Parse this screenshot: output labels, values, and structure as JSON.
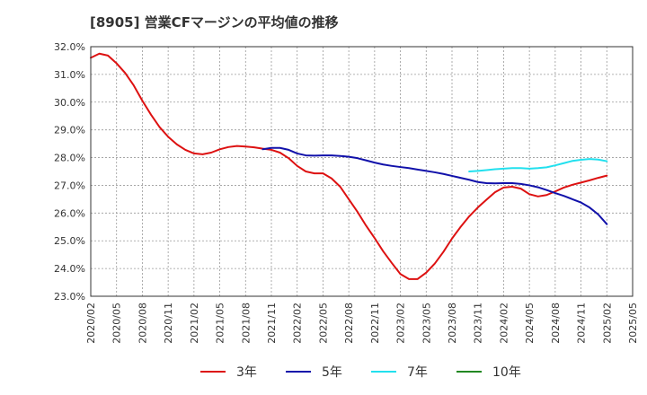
{
  "chart_data": {
    "type": "line",
    "title": "[8905]  営業CFマージンの平均値の推移",
    "xlabel": "",
    "ylabel": "",
    "ylim": [
      23.0,
      32.0
    ],
    "y_ticks": [
      "23.0%",
      "24.0%",
      "25.0%",
      "26.0%",
      "27.0%",
      "28.0%",
      "29.0%",
      "30.0%",
      "31.0%",
      "32.0%"
    ],
    "x_ticks": [
      "2020/02",
      "2020/05",
      "2020/08",
      "2020/11",
      "2021/02",
      "2021/05",
      "2021/08",
      "2021/11",
      "2022/02",
      "2022/05",
      "2022/08",
      "2022/11",
      "2023/02",
      "2023/05",
      "2023/08",
      "2023/11",
      "2024/02",
      "2024/05",
      "2024/08",
      "2024/11",
      "2025/02",
      "2025/05"
    ],
    "grid": true,
    "legend_position": "bottom",
    "series": [
      {
        "name": "3年",
        "color": "#dd1111",
        "points": [
          [
            "2020/02",
            31.6
          ],
          [
            "2020/03",
            31.75
          ],
          [
            "2020/04",
            31.68
          ],
          [
            "2020/05",
            31.4
          ],
          [
            "2020/06",
            31.05
          ],
          [
            "2020/07",
            30.6
          ],
          [
            "2020/08",
            30.05
          ],
          [
            "2020/09",
            29.55
          ],
          [
            "2020/10",
            29.1
          ],
          [
            "2020/11",
            28.75
          ],
          [
            "2020/12",
            28.48
          ],
          [
            "2021/01",
            28.28
          ],
          [
            "2021/02",
            28.15
          ],
          [
            "2021/03",
            28.12
          ],
          [
            "2021/04",
            28.18
          ],
          [
            "2021/05",
            28.3
          ],
          [
            "2021/06",
            28.38
          ],
          [
            "2021/07",
            28.42
          ],
          [
            "2021/08",
            28.4
          ],
          [
            "2021/09",
            28.37
          ],
          [
            "2021/10",
            28.32
          ],
          [
            "2021/11",
            28.28
          ],
          [
            "2021/12",
            28.18
          ],
          [
            "2022/01",
            27.98
          ],
          [
            "2022/02",
            27.7
          ],
          [
            "2022/03",
            27.5
          ],
          [
            "2022/04",
            27.43
          ],
          [
            "2022/05",
            27.43
          ],
          [
            "2022/06",
            27.25
          ],
          [
            "2022/07",
            26.95
          ],
          [
            "2022/08",
            26.5
          ],
          [
            "2022/09",
            26.05
          ],
          [
            "2022/10",
            25.55
          ],
          [
            "2022/11",
            25.1
          ],
          [
            "2022/12",
            24.62
          ],
          [
            "2023/01",
            24.2
          ],
          [
            "2023/02",
            23.8
          ],
          [
            "2023/03",
            23.62
          ],
          [
            "2023/04",
            23.62
          ],
          [
            "2023/05",
            23.85
          ],
          [
            "2023/06",
            24.18
          ],
          [
            "2023/07",
            24.6
          ],
          [
            "2023/08",
            25.08
          ],
          [
            "2023/09",
            25.5
          ],
          [
            "2023/10",
            25.88
          ],
          [
            "2023/11",
            26.2
          ],
          [
            "2023/12",
            26.48
          ],
          [
            "2024/01",
            26.75
          ],
          [
            "2024/02",
            26.92
          ],
          [
            "2024/03",
            26.95
          ],
          [
            "2024/04",
            26.88
          ],
          [
            "2024/05",
            26.68
          ],
          [
            "2024/06",
            26.6
          ],
          [
            "2024/07",
            26.65
          ],
          [
            "2024/08",
            26.78
          ],
          [
            "2024/09",
            26.92
          ],
          [
            "2024/10",
            27.02
          ],
          [
            "2024/11",
            27.1
          ],
          [
            "2024/12",
            27.18
          ],
          [
            "2025/01",
            27.27
          ],
          [
            "2025/02",
            27.35
          ]
        ]
      },
      {
        "name": "5年",
        "color": "#1111aa",
        "points": [
          [
            "2021/10",
            28.3
          ],
          [
            "2021/11",
            28.35
          ],
          [
            "2021/12",
            28.35
          ],
          [
            "2022/01",
            28.28
          ],
          [
            "2022/02",
            28.15
          ],
          [
            "2022/03",
            28.08
          ],
          [
            "2022/04",
            28.07
          ],
          [
            "2022/05",
            28.08
          ],
          [
            "2022/06",
            28.08
          ],
          [
            "2022/07",
            28.06
          ],
          [
            "2022/08",
            28.03
          ],
          [
            "2022/09",
            27.98
          ],
          [
            "2022/10",
            27.9
          ],
          [
            "2022/11",
            27.82
          ],
          [
            "2022/12",
            27.75
          ],
          [
            "2023/01",
            27.7
          ],
          [
            "2023/02",
            27.66
          ],
          [
            "2023/03",
            27.62
          ],
          [
            "2023/04",
            27.57
          ],
          [
            "2023/05",
            27.52
          ],
          [
            "2023/06",
            27.47
          ],
          [
            "2023/07",
            27.41
          ],
          [
            "2023/08",
            27.34
          ],
          [
            "2023/09",
            27.27
          ],
          [
            "2023/10",
            27.2
          ],
          [
            "2023/11",
            27.12
          ],
          [
            "2023/12",
            27.08
          ],
          [
            "2024/01",
            27.07
          ],
          [
            "2024/02",
            27.08
          ],
          [
            "2024/03",
            27.08
          ],
          [
            "2024/04",
            27.05
          ],
          [
            "2024/05",
            27.0
          ],
          [
            "2024/06",
            26.93
          ],
          [
            "2024/07",
            26.83
          ],
          [
            "2024/08",
            26.72
          ],
          [
            "2024/09",
            26.62
          ],
          [
            "2024/10",
            26.5
          ],
          [
            "2024/11",
            26.38
          ],
          [
            "2024/12",
            26.2
          ],
          [
            "2025/01",
            25.95
          ],
          [
            "2025/02",
            25.6
          ]
        ]
      },
      {
        "name": "7年",
        "color": "#22e0ee",
        "points": [
          [
            "2023/10",
            27.5
          ],
          [
            "2023/11",
            27.52
          ],
          [
            "2023/12",
            27.55
          ],
          [
            "2024/01",
            27.58
          ],
          [
            "2024/02",
            27.6
          ],
          [
            "2024/03",
            27.62
          ],
          [
            "2024/04",
            27.62
          ],
          [
            "2024/05",
            27.6
          ],
          [
            "2024/06",
            27.62
          ],
          [
            "2024/07",
            27.65
          ],
          [
            "2024/08",
            27.72
          ],
          [
            "2024/09",
            27.8
          ],
          [
            "2024/10",
            27.88
          ],
          [
            "2024/11",
            27.92
          ],
          [
            "2024/12",
            27.95
          ],
          [
            "2025/01",
            27.93
          ],
          [
            "2025/02",
            27.87
          ]
        ]
      },
      {
        "name": "10年",
        "color": "#228822",
        "points": []
      }
    ]
  }
}
